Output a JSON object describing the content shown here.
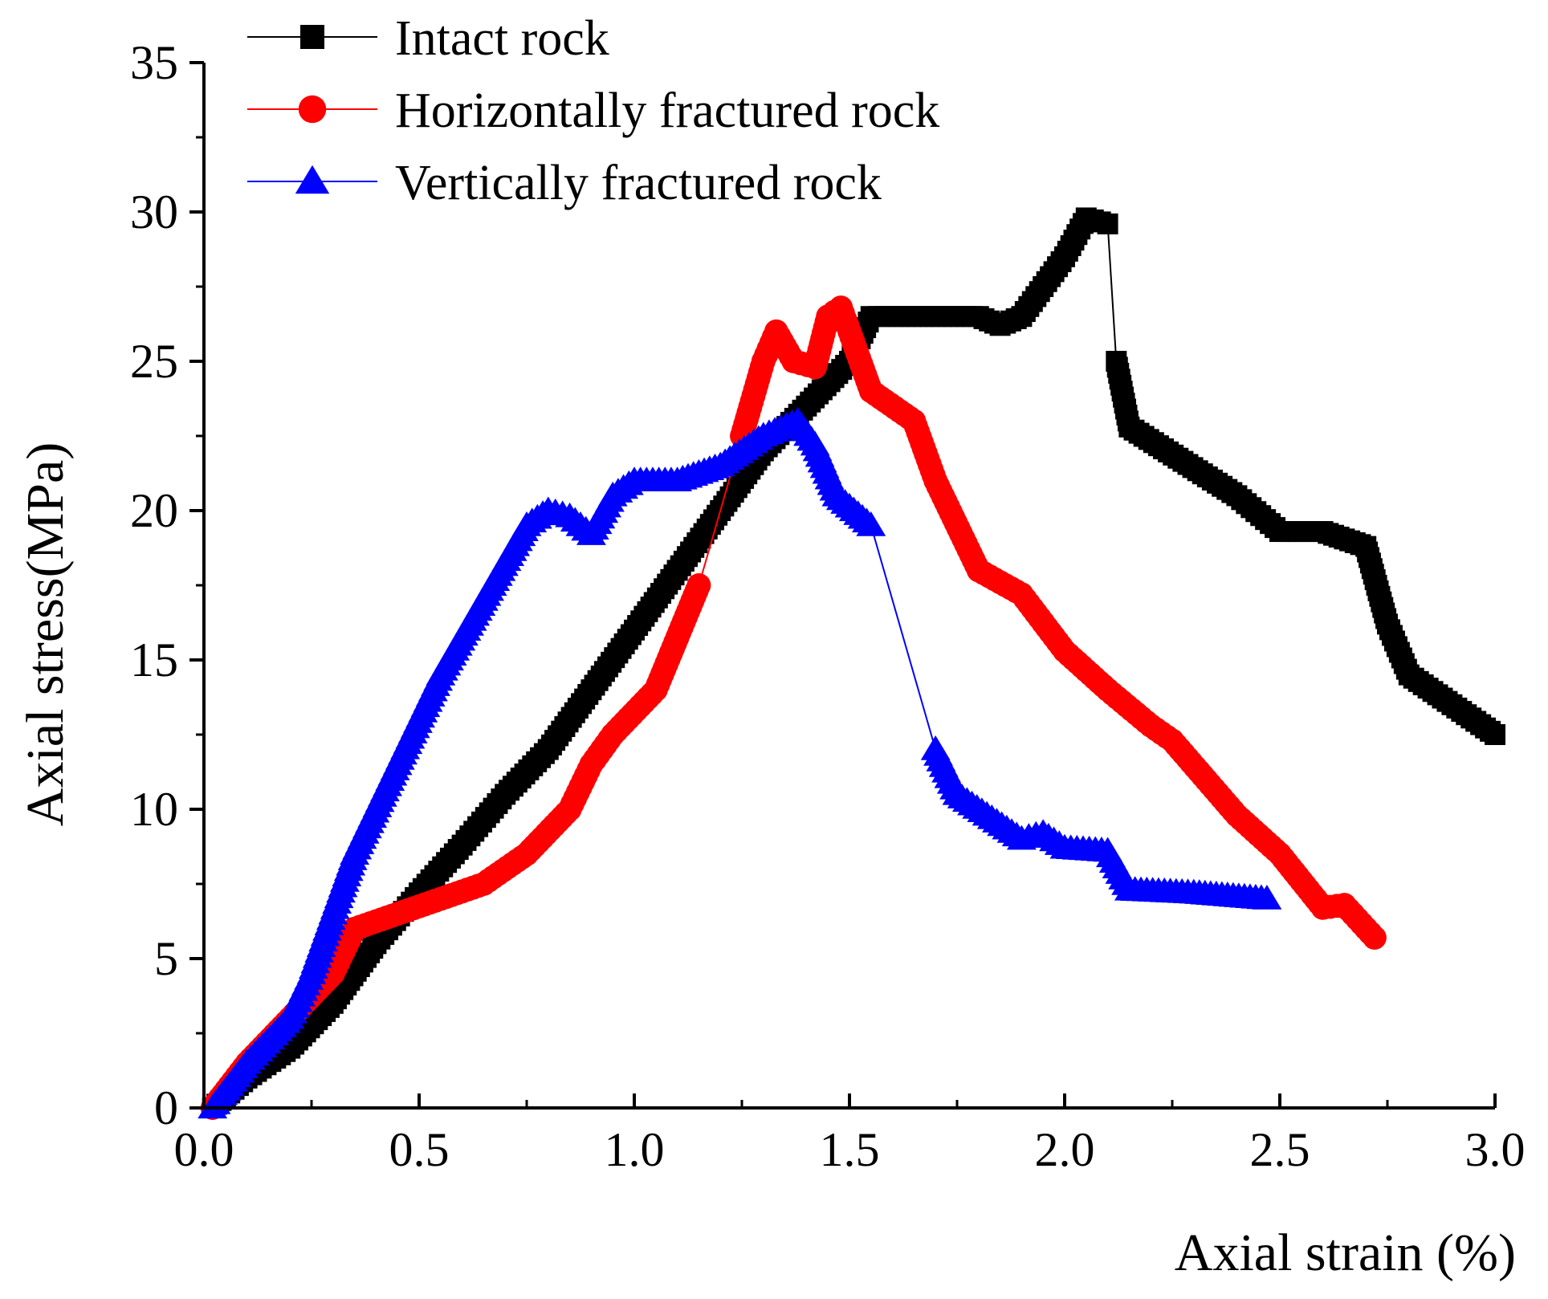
{
  "chart_data": {
    "type": "line",
    "title": "",
    "xlabel": "Axial strain (%)",
    "ylabel": "Axial stress(MPa)",
    "xlim": [
      0.0,
      3.0
    ],
    "ylim": [
      0,
      35
    ],
    "xticks": [
      "0.0",
      "0.5",
      "1.0",
      "1.5",
      "2.0",
      "2.5",
      "3.0"
    ],
    "yticks": [
      "0",
      "5",
      "10",
      "15",
      "20",
      "25",
      "30",
      "35"
    ],
    "grid": false,
    "legend_position": "top-left",
    "series": [
      {
        "name": "Intact rock",
        "color": "#000000",
        "marker": "square",
        "x": [
          0.02,
          0.1,
          0.2,
          0.3,
          0.4,
          0.5,
          0.6,
          0.7,
          0.8,
          0.9,
          1.0,
          1.1,
          1.2,
          1.3,
          1.4,
          1.5,
          1.55,
          1.6,
          1.7,
          1.8,
          1.85,
          1.9,
          1.95,
          2.0,
          2.05,
          2.1,
          2.12,
          2.15,
          2.4,
          2.5,
          2.6,
          2.7,
          2.75,
          2.8,
          2.9,
          3.0
        ],
        "y": [
          0,
          1,
          2,
          3.5,
          5.5,
          7.2,
          8.8,
          10.5,
          12,
          14,
          16,
          18,
          20,
          22,
          23.5,
          25,
          26.5,
          26.5,
          26.5,
          26.5,
          26.2,
          26.5,
          27.5,
          28.5,
          29.8,
          29.6,
          25,
          22.8,
          20.5,
          19.3,
          19.3,
          18.8,
          16.2,
          14.5,
          13.5,
          12.5
        ]
      },
      {
        "name": "Horizontally fractured rock",
        "color": "#ff0000",
        "marker": "circle",
        "x": [
          0.02,
          0.1,
          0.2,
          0.3,
          0.35,
          0.45,
          0.55,
          0.65,
          0.75,
          0.85,
          0.9,
          0.95,
          1.05,
          1.15,
          1.25,
          1.3,
          1.33,
          1.37,
          1.42,
          1.45,
          1.48,
          1.5,
          1.55,
          1.65,
          1.7,
          1.8,
          1.9,
          2.0,
          2.1,
          2.2,
          2.25,
          2.4,
          2.5,
          2.6,
          2.65,
          2.72
        ],
        "y": [
          0,
          1.5,
          3,
          4.5,
          6,
          6.5,
          7,
          7.5,
          8.5,
          10,
          11.5,
          12.5,
          14,
          17.5,
          22.5,
          25,
          26,
          25,
          24.8,
          26.5,
          26.8,
          26,
          24,
          23,
          21,
          18,
          17.2,
          15.3,
          14,
          12.8,
          12.3,
          9.8,
          8.5,
          6.7,
          6.8,
          5.7
        ]
      },
      {
        "name": "Vertically fractured rock",
        "color": "#0000ff",
        "marker": "triangle",
        "x": [
          0.02,
          0.1,
          0.2,
          0.25,
          0.3,
          0.35,
          0.45,
          0.55,
          0.65,
          0.75,
          0.8,
          0.85,
          0.9,
          0.95,
          1.0,
          1.1,
          1.2,
          1.3,
          1.38,
          1.42,
          1.47,
          1.55,
          1.7,
          1.75,
          1.9,
          1.95,
          2.0,
          2.1,
          2.15,
          2.3,
          2.47
        ],
        "y": [
          0,
          1.5,
          3,
          4.5,
          6.5,
          8.5,
          11.5,
          14.5,
          17,
          19.5,
          20,
          19.8,
          19.2,
          20.5,
          21,
          21,
          21.5,
          22.5,
          23,
          22.2,
          20.5,
          19.5,
          12,
          10.5,
          9,
          9.2,
          8.7,
          8.6,
          7.3,
          7.2,
          7
        ]
      }
    ]
  }
}
